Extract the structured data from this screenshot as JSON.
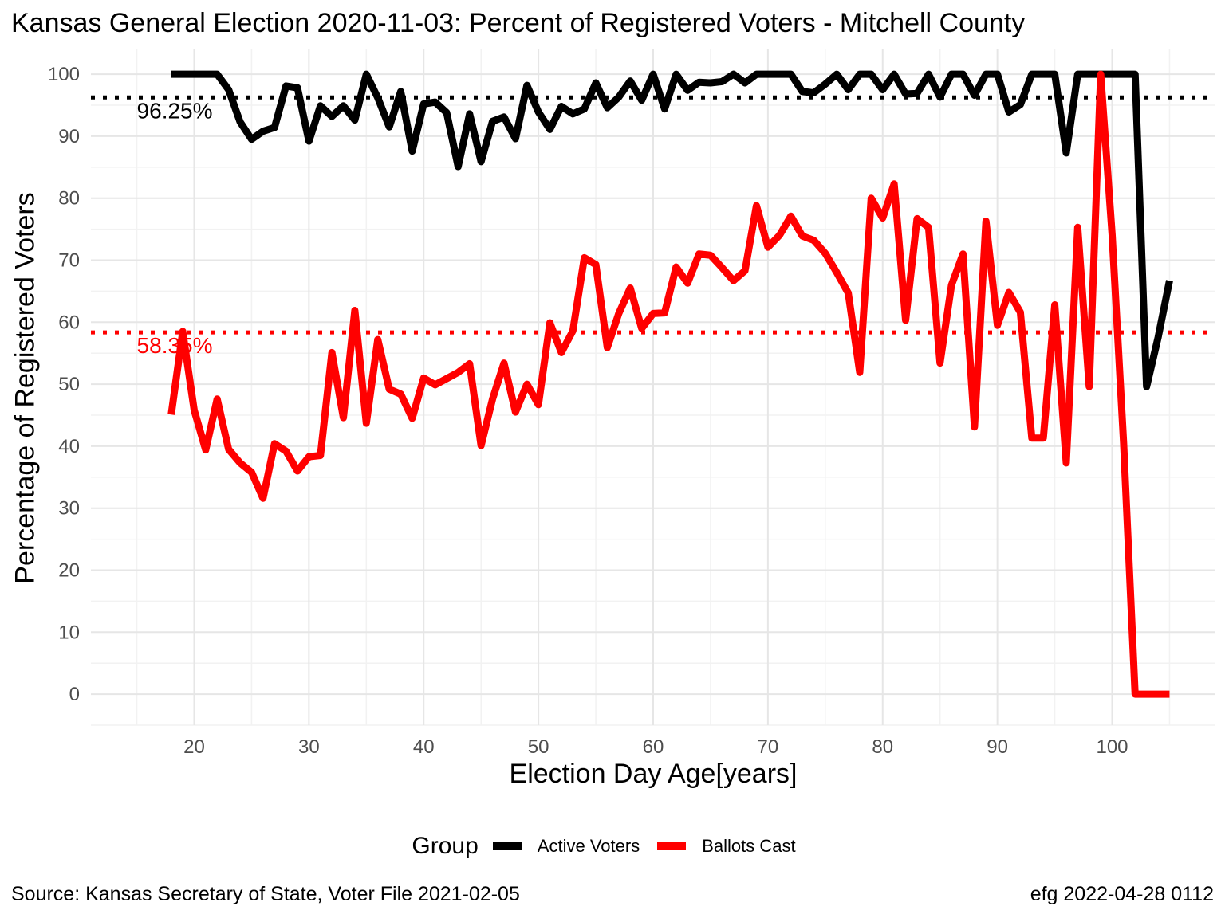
{
  "chart_data": {
    "type": "line",
    "title": "Kansas General Election 2020-11-03:  Percent of Registered Voters - Mitchell County",
    "xlabel": "Election Day Age[years]",
    "ylabel": "Percentage of Registered Voters",
    "xlim": [
      11,
      109
    ],
    "ylim": [
      -5,
      104
    ],
    "x_ticks": [
      20,
      30,
      40,
      50,
      60,
      70,
      80,
      90,
      100
    ],
    "y_ticks": [
      0,
      10,
      20,
      30,
      40,
      50,
      60,
      70,
      80,
      90,
      100
    ],
    "grid": true,
    "legend_title": "Group",
    "legend_position": "bottom",
    "x": [
      18,
      19,
      20,
      21,
      22,
      23,
      24,
      25,
      26,
      27,
      28,
      29,
      30,
      31,
      32,
      33,
      34,
      35,
      36,
      37,
      38,
      39,
      40,
      41,
      42,
      43,
      44,
      45,
      46,
      47,
      48,
      49,
      50,
      51,
      52,
      53,
      54,
      55,
      56,
      57,
      58,
      59,
      60,
      61,
      62,
      63,
      64,
      65,
      66,
      67,
      68,
      69,
      70,
      71,
      72,
      73,
      74,
      75,
      76,
      77,
      78,
      79,
      80,
      81,
      82,
      83,
      84,
      85,
      86,
      87,
      88,
      89,
      90,
      91,
      92,
      93,
      94,
      95,
      96,
      97,
      98,
      99,
      100,
      101,
      102,
      103,
      104,
      105
    ],
    "series": [
      {
        "name": "Active Voters",
        "color": "#000000",
        "values": [
          100,
          100,
          100,
          100,
          100,
          97.5,
          92.3,
          89.5,
          90.8,
          91.4,
          98.1,
          97.8,
          89.2,
          94.9,
          93.2,
          94.9,
          92.6,
          100,
          96.2,
          91.5,
          97.2,
          87.6,
          95.2,
          95.5,
          93.8,
          85.1,
          93.6,
          85.9,
          92.4,
          93.1,
          89.6,
          98.2,
          93.9,
          91.1,
          94.8,
          93.6,
          94.4,
          98.6,
          94.6,
          96.3,
          98.9,
          95.8,
          100,
          94.4,
          100,
          97.4,
          98.7,
          98.6,
          98.8,
          100,
          98.6,
          100,
          100,
          100,
          100,
          97.2,
          97,
          98.4,
          100,
          97.5,
          100,
          100,
          97.5,
          100,
          96.8,
          96.9,
          100,
          96.3,
          100,
          100,
          96.6,
          100,
          100,
          93.9,
          95.1,
          100,
          100,
          100,
          87.3,
          100,
          100,
          100,
          100,
          100,
          100,
          49.6,
          57.5,
          66.7
        ]
      },
      {
        "name": "Ballots Cast",
        "color": "#ff0000",
        "values": [
          45.1,
          58.5,
          45.8,
          39.4,
          47.6,
          39.5,
          37.3,
          35.8,
          31.6,
          40.4,
          39.2,
          36,
          38.3,
          38.5,
          55.1,
          44.6,
          61.9,
          43.7,
          57.2,
          49.2,
          48.4,
          44.5,
          51,
          49.9,
          50.9,
          51.9,
          53.3,
          40.1,
          47.6,
          53.4,
          45.5,
          50,
          46.7,
          59.9,
          55.1,
          58.6,
          70.4,
          69.3,
          55.9,
          61.4,
          65.5,
          59,
          61.4,
          61.5,
          68.9,
          66.3,
          71,
          70.8,
          68.8,
          66.7,
          68.3,
          78.8,
          72.1,
          74,
          77.1,
          73.9,
          73.2,
          71.1,
          68,
          64.7,
          51.9,
          80,
          76.8,
          82.3,
          60.3,
          76.7,
          75.3,
          53.4,
          66,
          71,
          43.1,
          76.3,
          59.5,
          64.8,
          61.6,
          41.3,
          41.3,
          62.8,
          37.3,
          75.3,
          49.6,
          100,
          74,
          40.4,
          0,
          0,
          0,
          0
        ]
      }
    ],
    "reference_lines": [
      {
        "value": 96.25,
        "label": "96.25%",
        "color": "#000000"
      },
      {
        "value": 58.35,
        "label": "58.35%",
        "color": "#ff0000"
      }
    ]
  },
  "footer": {
    "source": "Source:  Kansas Secretary of State, Voter File  2021-02-05",
    "stamp": "efg 2022-04-28 0112"
  }
}
